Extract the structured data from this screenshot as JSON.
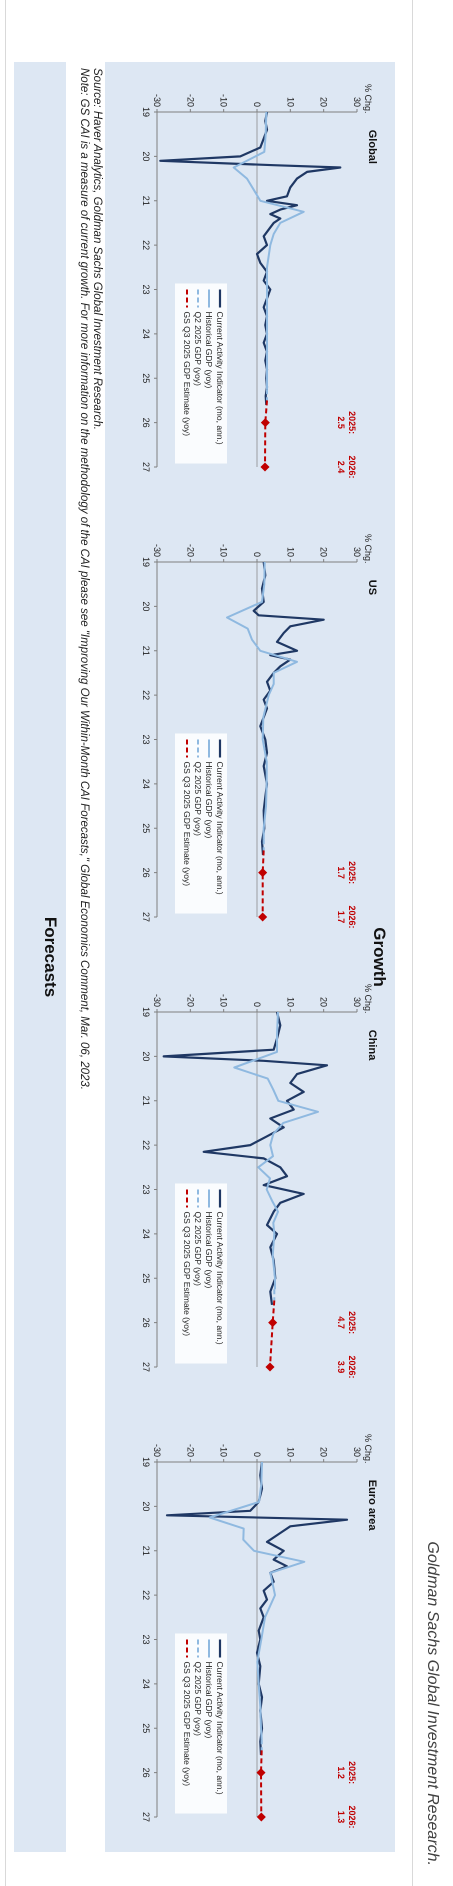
{
  "header": {
    "credit": "Goldman Sachs Global Investment Research."
  },
  "growth": {
    "title": "Growth"
  },
  "footnote": {
    "source": "Source: Haver Analytics, Goldman Sachs Global Investment Research.",
    "note": "Note: GS CAI is a measure of current growth. For more information on the methodology of the CAI please see \"Improving Our Within-Month CAI Forecasts,\" Global Economics Comment, Mar. 06, 2023."
  },
  "forecasts": {
    "title": "Forecasts"
  },
  "colors": {
    "cai": "#1f3864",
    "hist": "#8fb9e0",
    "q2": "#8fb9e0",
    "est": "#c00000",
    "panel": "#dde7f3"
  },
  "chart_data": [
    {
      "type": "line",
      "title": "Global",
      "ylabel": "% Chg.",
      "ylim": [
        -30,
        30
      ],
      "yticks": [
        30,
        20,
        10,
        0,
        -10,
        -20,
        -30
      ],
      "xlim": [
        19,
        27
      ],
      "xticks": [
        "19",
        "20",
        "21",
        "22",
        "23",
        "24",
        "25",
        "26",
        "27"
      ],
      "legend": [
        "Current Activity Indicator (mo, ann.)",
        "Historical GDP (yoy)",
        "Q2 2025 GDP (yoy)",
        "GS Q3 2025 GDP Estimate (yoy)"
      ],
      "legend_position": "bottom",
      "annotations": [
        {
          "label": "2025:",
          "value": "2.5",
          "x": 26.0,
          "y": 2.5
        },
        {
          "label": "2026:",
          "value": "2.4",
          "x": 27.0,
          "y": 2.4
        }
      ],
      "series": [
        {
          "name": "Current Activity Indicator (mo, ann.)",
          "style": "cai",
          "x": [
            19.0,
            19.2,
            19.4,
            19.6,
            19.8,
            20.0,
            20.1,
            20.2,
            20.25,
            20.35,
            20.5,
            20.7,
            20.9,
            21.0,
            21.1,
            21.2,
            21.3,
            21.4,
            21.5,
            21.6,
            21.8,
            22.0,
            22.2,
            22.4,
            22.6,
            22.8,
            23.0,
            23.2,
            23.4,
            23.6,
            23.8,
            24.0,
            24.2,
            24.4,
            24.6,
            24.8,
            25.0,
            25.2,
            25.4,
            25.6
          ],
          "y": [
            3.0,
            2.5,
            3.0,
            2.0,
            1.0,
            -5.0,
            -29.0,
            5.0,
            25.0,
            15.0,
            12.0,
            10.0,
            9.0,
            3.0,
            12.0,
            7.0,
            4.0,
            7.0,
            5.0,
            4.0,
            2.0,
            3.0,
            0.0,
            1.0,
            3.0,
            2.0,
            4.0,
            3.0,
            2.0,
            3.0,
            2.5,
            3.0,
            2.0,
            3.0,
            2.5,
            3.0,
            2.8,
            3.0,
            2.6,
            2.8
          ]
        },
        {
          "name": "Historical GDP (yoy)",
          "style": "hist",
          "x": [
            19.0,
            19.5,
            19.9,
            20.25,
            20.5,
            20.75,
            21.0,
            21.25,
            21.5,
            21.75,
            22.0,
            22.5,
            23.0,
            23.5,
            24.0,
            24.5,
            25.0,
            25.25
          ],
          "y": [
            2.8,
            2.6,
            2.2,
            -7.0,
            -3.0,
            -1.0,
            1.0,
            14.0,
            7.0,
            5.0,
            4.0,
            3.0,
            3.0,
            3.0,
            3.0,
            3.0,
            3.0,
            3.0
          ]
        },
        {
          "name": "Q2 2025 GDP (yoy)",
          "style": "q2",
          "x": [
            25.25,
            25.5
          ],
          "y": [
            3.0,
            3.0
          ]
        },
        {
          "name": "GS Q3 2025 GDP Estimate (yoy)",
          "style": "est",
          "x": [
            25.5,
            26.0,
            27.0
          ],
          "y": [
            3.0,
            2.5,
            2.4
          ]
        }
      ]
    },
    {
      "type": "line",
      "title": "US",
      "ylabel": "% Chg.",
      "ylim": [
        -30,
        30
      ],
      "yticks": [
        30,
        20,
        10,
        0,
        -10,
        -20,
        -30
      ],
      "xlim": [
        19,
        27
      ],
      "xticks": [
        "19",
        "20",
        "21",
        "22",
        "23",
        "24",
        "25",
        "26",
        "27"
      ],
      "legend": [
        "Current Activity Indicator (mo, ann.)",
        "Historical GDP (yoy)",
        "Q2 2025 GDP (yoy)",
        "GS Q3 2025 GDP Estimate (yoy)"
      ],
      "legend_position": "bottom",
      "annotations": [
        {
          "label": "2025:",
          "value": "1.7",
          "x": 26.0,
          "y": 1.7
        },
        {
          "label": "2026:",
          "value": "1.7",
          "x": 27.0,
          "y": 1.7
        }
      ],
      "series": [
        {
          "name": "Current Activity Indicator (mo, ann.)",
          "style": "cai",
          "x": [
            19.0,
            19.3,
            19.6,
            19.9,
            20.1,
            20.2,
            20.3,
            20.45,
            20.6,
            20.8,
            21.0,
            21.1,
            21.2,
            21.35,
            21.5,
            21.7,
            21.9,
            22.1,
            22.3,
            22.5,
            22.7,
            23.0,
            23.3,
            23.6,
            24.0,
            24.3,
            24.6,
            25.0,
            25.3,
            25.6
          ],
          "y": [
            2.0,
            2.5,
            1.5,
            2.0,
            -1.0,
            0.5,
            20.0,
            10.0,
            8.0,
            6.0,
            12.0,
            4.0,
            10.0,
            7.0,
            5.0,
            3.0,
            4.0,
            2.0,
            3.0,
            2.0,
            1.0,
            2.5,
            3.0,
            2.0,
            3.0,
            2.5,
            2.0,
            2.2,
            1.5,
            1.8
          ]
        },
        {
          "name": "Historical GDP (yoy)",
          "style": "hist",
          "x": [
            19.0,
            19.5,
            19.9,
            20.25,
            20.5,
            20.75,
            21.0,
            21.25,
            21.5,
            21.75,
            22.0,
            22.5,
            23.0,
            23.5,
            24.0,
            24.5,
            25.0,
            25.25
          ],
          "y": [
            2.3,
            2.2,
            1.5,
            -9.0,
            -2.8,
            -1.5,
            1.0,
            12.0,
            5.0,
            5.0,
            3.5,
            1.9,
            1.7,
            2.9,
            2.9,
            2.7,
            2.0,
            2.0
          ]
        },
        {
          "name": "Q2 2025 GDP (yoy)",
          "style": "q2",
          "x": [
            25.25,
            25.5
          ],
          "y": [
            2.0,
            2.0
          ]
        },
        {
          "name": "GS Q3 2025 GDP Estimate (yoy)",
          "style": "est",
          "x": [
            25.5,
            26.0,
            27.0
          ],
          "y": [
            2.0,
            1.7,
            1.7
          ]
        }
      ]
    },
    {
      "type": "line",
      "title": "China",
      "ylabel": "% Chg.",
      "ylim": [
        -30,
        30
      ],
      "yticks": [
        30,
        20,
        10,
        0,
        -10,
        -20,
        -30
      ],
      "xlim": [
        19,
        27
      ],
      "xticks": [
        "19",
        "20",
        "21",
        "22",
        "23",
        "24",
        "25",
        "26",
        "27"
      ],
      "legend": [
        "Current Activity Indicator (mo, ann.)",
        "Historical GDP (yoy)",
        "Q2 2025 GDP (yoy)",
        "GS Q3 2025 GDP Estimate (yoy)"
      ],
      "legend_position": "bottom",
      "annotations": [
        {
          "label": "2025:",
          "value": "4.7",
          "x": 26.0,
          "y": 4.7
        },
        {
          "label": "2026:",
          "value": "3.9",
          "x": 27.0,
          "y": 3.9
        }
      ],
      "series": [
        {
          "name": "Current Activity Indicator (mo, ann.)",
          "style": "cai",
          "x": [
            19.0,
            19.3,
            19.6,
            19.85,
            20.0,
            20.1,
            20.2,
            20.4,
            20.6,
            20.8,
            21.0,
            21.2,
            21.4,
            21.6,
            21.8,
            22.0,
            22.15,
            22.3,
            22.5,
            22.7,
            22.9,
            23.1,
            23.3,
            23.5,
            23.8,
            24.0,
            24.3,
            24.6,
            25.0,
            25.3,
            25.6
          ],
          "y": [
            6.0,
            7.0,
            6.0,
            5.0,
            -28.0,
            2.0,
            21.0,
            12.0,
            10.0,
            14.0,
            9.0,
            11.0,
            4.0,
            8.0,
            3.0,
            -2.0,
            -16.0,
            2.0,
            7.0,
            9.0,
            2.0,
            14.0,
            7.0,
            5.0,
            3.0,
            6.0,
            4.0,
            5.0,
            5.5,
            4.0,
            4.5
          ]
        },
        {
          "name": "Historical GDP (yoy)",
          "style": "hist",
          "x": [
            19.0,
            19.5,
            19.9,
            20.25,
            20.5,
            20.75,
            21.0,
            21.25,
            21.5,
            21.75,
            22.0,
            22.25,
            22.5,
            22.75,
            23.0,
            23.25,
            23.5,
            23.75,
            24.0,
            24.5,
            25.0,
            25.25
          ],
          "y": [
            6.3,
            6.0,
            6.0,
            -6.8,
            3.2,
            4.9,
            6.4,
            18.3,
            7.9,
            4.9,
            4.0,
            4.8,
            0.4,
            3.9,
            2.9,
            4.5,
            6.3,
            4.9,
            5.2,
            4.7,
            5.4,
            5.4
          ]
        },
        {
          "name": "Q2 2025 GDP (yoy)",
          "style": "q2",
          "x": [
            25.25,
            25.5
          ],
          "y": [
            5.2,
            5.2
          ]
        },
        {
          "name": "GS Q3 2025 GDP Estimate (yoy)",
          "style": "est",
          "x": [
            25.5,
            26.0,
            27.0
          ],
          "y": [
            5.2,
            4.7,
            3.9
          ]
        }
      ]
    },
    {
      "type": "line",
      "title": "Euro area",
      "ylabel": "% Chg.",
      "ylim": [
        -30,
        30
      ],
      "yticks": [
        30,
        20,
        10,
        0,
        -10,
        -20,
        -30
      ],
      "xlim": [
        19,
        27
      ],
      "xticks": [
        "19",
        "20",
        "21",
        "22",
        "23",
        "24",
        "25",
        "26",
        "27"
      ],
      "legend": [
        "Current Activity Indicator (mo, ann.)",
        "Historical GDP (yoy)",
        "Q2 2025 GDP (yoy)",
        "GS Q3 2025 GDP Estimate (yoy)"
      ],
      "legend_position": "bottom",
      "annotations": [
        {
          "label": "2025:",
          "value": "1.2",
          "x": 26.0,
          "y": 1.2
        },
        {
          "label": "2026:",
          "value": "1.3",
          "x": 27.0,
          "y": 1.3
        }
      ],
      "series": [
        {
          "name": "Current Activity Indicator (mo, ann.)",
          "style": "cai",
          "x": [
            19.0,
            19.3,
            19.6,
            19.9,
            20.1,
            20.2,
            20.3,
            20.45,
            20.6,
            20.8,
            21.0,
            21.2,
            21.35,
            21.5,
            21.7,
            21.9,
            22.1,
            22.3,
            22.5,
            22.8,
            23.0,
            23.3,
            23.6,
            24.0,
            24.3,
            24.6,
            25.0,
            25.3,
            25.6
          ],
          "y": [
            1.5,
            1.0,
            1.5,
            0.5,
            -2.0,
            -27.0,
            27.0,
            10.0,
            7.0,
            3.0,
            8.0,
            5.0,
            9.0,
            4.0,
            5.0,
            2.0,
            3.0,
            1.0,
            2.0,
            0.5,
            1.0,
            0.0,
            1.0,
            0.5,
            1.5,
            1.0,
            1.5,
            1.0,
            1.2
          ]
        },
        {
          "name": "Historical GDP (yoy)",
          "style": "hist",
          "x": [
            19.0,
            19.5,
            19.9,
            20.25,
            20.5,
            20.75,
            21.0,
            21.25,
            21.5,
            21.75,
            22.0,
            22.5,
            23.0,
            23.5,
            24.0,
            24.5,
            25.0,
            25.25
          ],
          "y": [
            1.5,
            1.3,
            0.6,
            -14.2,
            -4.0,
            -4.1,
            -0.9,
            14.2,
            4.0,
            4.7,
            5.4,
            2.4,
            1.3,
            0.1,
            0.5,
            1.0,
            1.2,
            1.4
          ]
        },
        {
          "name": "Q2 2025 GDP (yoy)",
          "style": "q2",
          "x": [
            25.25,
            25.5
          ],
          "y": [
            1.4,
            1.4
          ]
        },
        {
          "name": "GS Q3 2025 GDP Estimate (yoy)",
          "style": "est",
          "x": [
            25.5,
            26.0,
            27.0
          ],
          "y": [
            1.4,
            1.2,
            1.3
          ]
        }
      ]
    }
  ]
}
